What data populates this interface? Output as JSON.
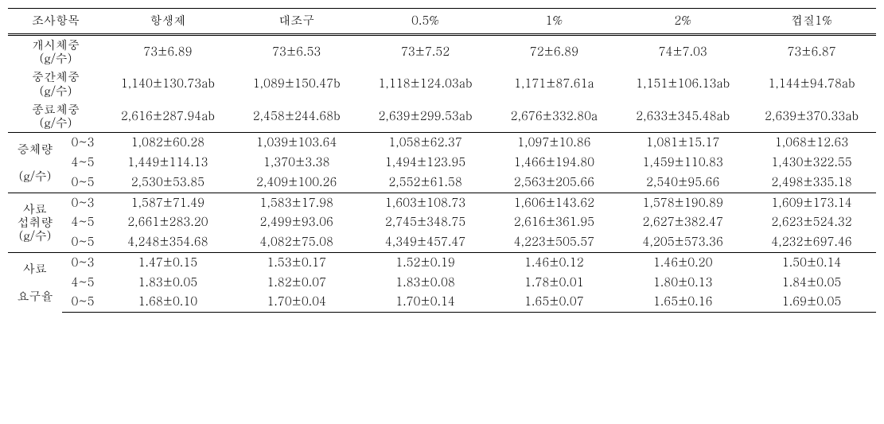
{
  "header": {
    "col0": "조사항목",
    "col1": "항생제",
    "col2": "대조구",
    "col3": "0.5%",
    "col4": "1%",
    "col5": "2%",
    "col6": "껍질1%"
  },
  "weights": {
    "start": {
      "label1": "개시체중",
      "label2": "(g/수)",
      "v": [
        "73±6.89",
        "73±6.53",
        "73±7.52",
        "72±6.89",
        "74±7.03",
        "73±6.87"
      ]
    },
    "mid": {
      "label1": "중간체중",
      "label2": "(g/수)",
      "v": [
        "1,140±130.73ab",
        "1,089±150.47b",
        "1,118±124.03ab",
        "1,171±87.61a",
        "1,151±106.13ab",
        "1,144±94.78ab"
      ]
    },
    "end": {
      "label1": "종료체중",
      "label2": "(g/수)",
      "v": [
        "2,616±287.94ab",
        "2,458±244.68b",
        "2,639±299.53ab",
        "2,676±332.80a",
        "2,633±345.48ab",
        "2,639±370.33ab"
      ]
    }
  },
  "gain": {
    "label1": "증체량",
    "label2": "(g/수)",
    "p": [
      "0~3",
      "4~5",
      "0~5"
    ],
    "r": [
      [
        "1,082±60.28",
        "1,039±103.64",
        "1,058±62.37",
        "1,097±10.86",
        "1,081±15.17",
        "1,068±12.63"
      ],
      [
        "1,449±114.13",
        "1,370±3.38",
        "1,494±123.95",
        "1,466±194.80",
        "1,459±110.83",
        "1,430±322.55"
      ],
      [
        "2,530±53.85",
        "2,409±100.26",
        "2,552±61.58",
        "2,563±205.66",
        "2,540±95.66",
        "2,498±335.18"
      ]
    ]
  },
  "intake": {
    "label1": "사료",
    "label2": "섭취량",
    "label3": "(g/수)",
    "p": [
      "0~3",
      "4~5",
      "0~5"
    ],
    "r": [
      [
        "1,587±71.49",
        "1,583±17.98",
        "1,603±108.73",
        "1,606±143.62",
        "1,578±190.89",
        "1,609±173.14"
      ],
      [
        "2,661±283.20",
        "2,499±93.06",
        "2,745±348.75",
        "2,616±361.95",
        "2,627±382.47",
        "2,623±524.32"
      ],
      [
        "4,248±354.68",
        "4,082±75.08",
        "4,349±457.47",
        "4,223±505.57",
        "4,205±573.36",
        "4,232±697.46"
      ]
    ]
  },
  "fcr": {
    "label1": "사료",
    "label2": "요구율",
    "p": [
      "0~3",
      "4~5",
      "0~5"
    ],
    "r": [
      [
        "1.47±0.15",
        "1.53±0.17",
        "1.52±0.19",
        "1.46±0.12",
        "1.46±0.20",
        "1.50±0.14"
      ],
      [
        "1.83±0.05",
        "1.82±0.07",
        "1.83±0.08",
        "1.78±0.01",
        "1.80±0.13",
        "1.84±0.05"
      ],
      [
        "1.68±0.10",
        "1.70±0.04",
        "1.70±0.14",
        "1.65±0.07",
        "1.65±0.16",
        "1.69±0.05"
      ]
    ]
  }
}
